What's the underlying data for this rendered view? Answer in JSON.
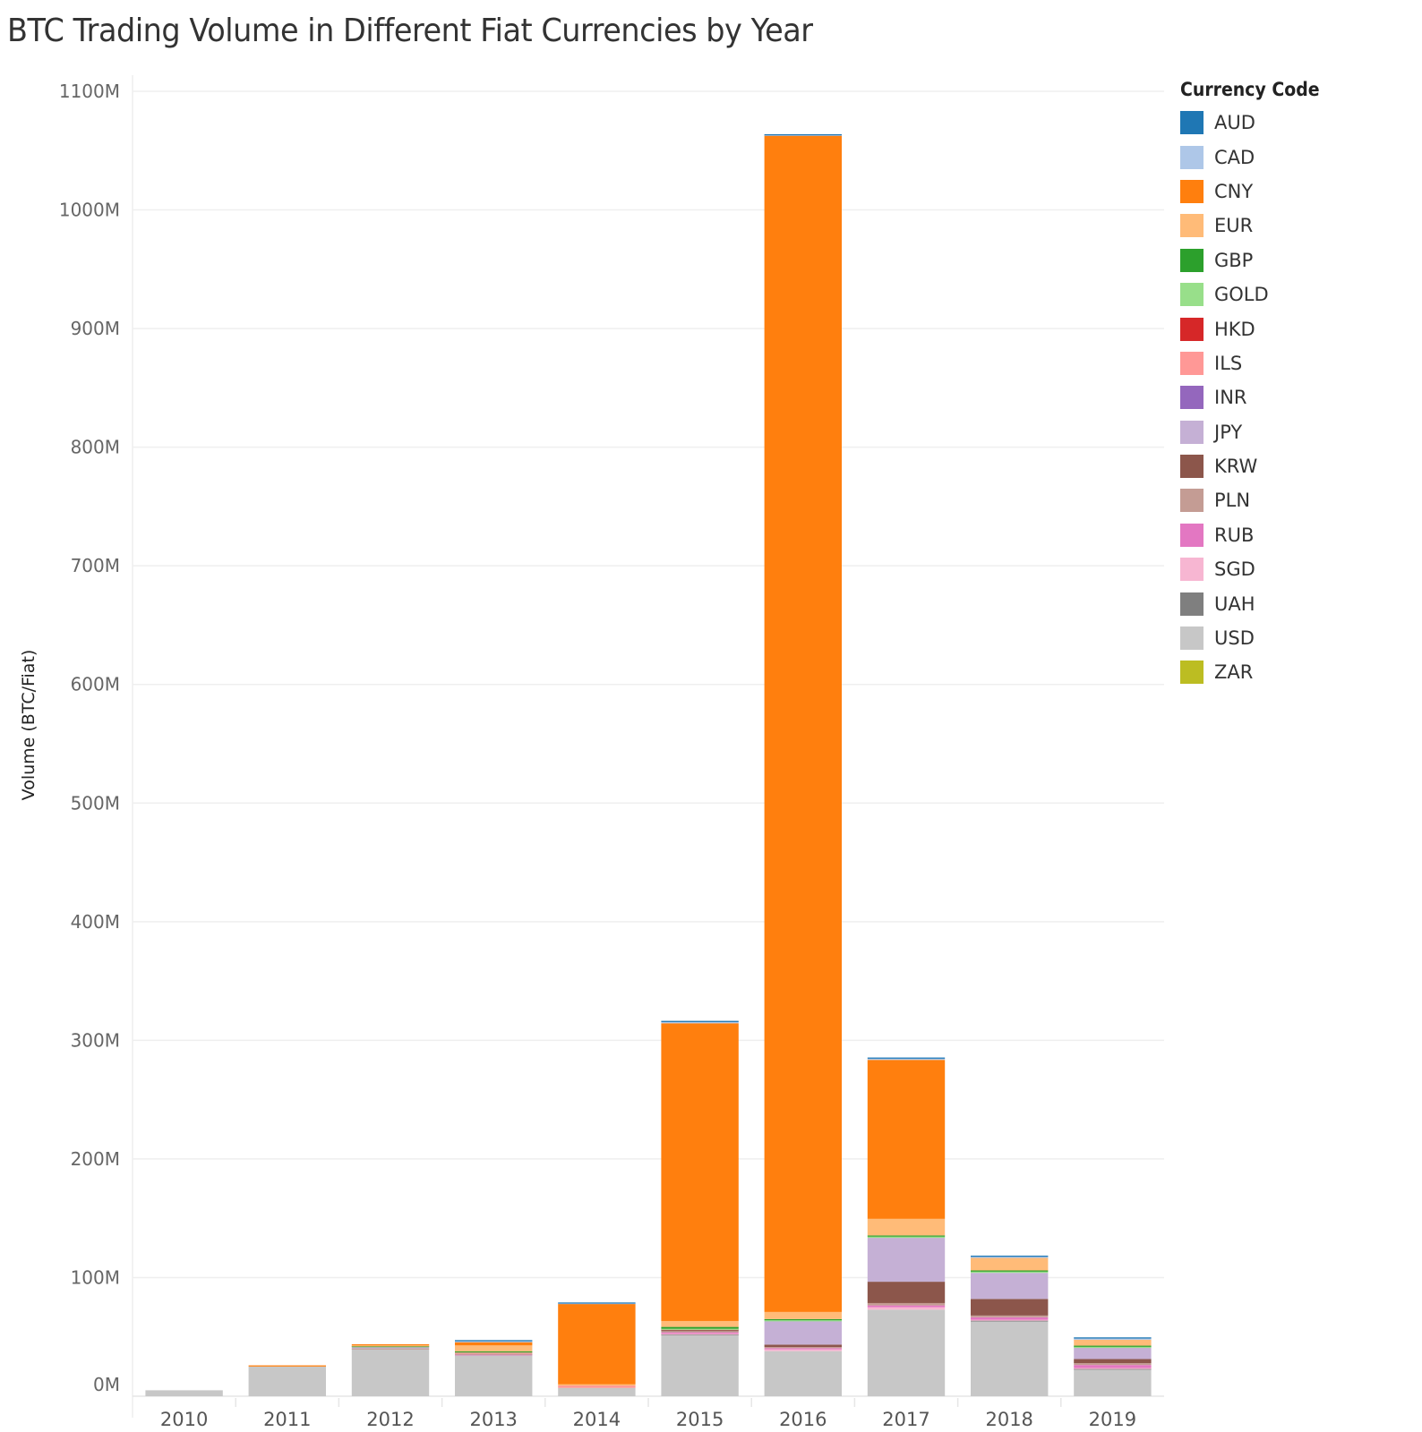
{
  "chart_data": {
    "type": "bar",
    "stacked": true,
    "title": "BTC Trading Volume in Different Fiat Currencies by Year",
    "xlabel": "",
    "ylabel": "Volume (BTC/Fiat)",
    "ylim": [
      0,
      1100
    ],
    "y_unit_suffix": "M",
    "yticks": [
      0,
      100,
      200,
      300,
      400,
      500,
      600,
      700,
      800,
      900,
      1000,
      1100
    ],
    "ytick_labels": [
      "0M",
      "100M",
      "200M",
      "300M",
      "400M",
      "500M",
      "600M",
      "700M",
      "800M",
      "900M",
      "1000M",
      "1100M"
    ],
    "grid": true,
    "legend_title": "Currency Code",
    "legend_position": "right",
    "categories": [
      "2010",
      "2011",
      "2012",
      "2013",
      "2014",
      "2015",
      "2016",
      "2017",
      "2018",
      "2019"
    ],
    "series": [
      {
        "name": "USD",
        "color": "#c7c7c7",
        "values": [
          5,
          25,
          40,
          35,
          7,
          52,
          38,
          73,
          63,
          23
        ]
      },
      {
        "name": "UAH",
        "color": "#7f7f7f",
        "values": [
          0,
          0,
          0,
          0,
          0,
          0.3,
          0,
          0,
          1,
          0.3
        ]
      },
      {
        "name": "SGD",
        "color": "#f7b6d2",
        "values": [
          0,
          0,
          0,
          0,
          0,
          0.5,
          2,
          2,
          0.5,
          0.5
        ]
      },
      {
        "name": "RUB",
        "color": "#e377c2",
        "values": [
          0,
          0,
          0,
          0.3,
          0,
          1,
          0.5,
          1.5,
          2,
          2.5
        ]
      },
      {
        "name": "PLN",
        "color": "#c49c94",
        "values": [
          0,
          0,
          0.3,
          0.5,
          0,
          1,
          1,
          2,
          1.5,
          1.5
        ]
      },
      {
        "name": "KRW",
        "color": "#8c564b",
        "values": [
          0,
          0,
          0,
          0,
          0,
          1.5,
          2,
          18,
          14,
          3.5
        ]
      },
      {
        "name": "JPY",
        "color": "#c5b0d5",
        "values": [
          0,
          0,
          1,
          0,
          0,
          0,
          20,
          37,
          22,
          10
        ]
      },
      {
        "name": "INR",
        "color": "#9467bd",
        "values": [
          0,
          0,
          0,
          0,
          0,
          0,
          0,
          0,
          0,
          0
        ]
      },
      {
        "name": "ILS",
        "color": "#ff9896",
        "values": [
          0,
          0,
          0,
          1,
          2,
          0.3,
          0,
          0,
          0,
          0
        ]
      },
      {
        "name": "HKD",
        "color": "#d62728",
        "values": [
          0,
          0,
          0,
          0,
          0,
          0,
          0,
          0,
          0,
          0
        ]
      },
      {
        "name": "GOLD",
        "color": "#98df8a",
        "values": [
          0,
          0,
          0,
          0,
          0,
          0.3,
          0.5,
          1,
          1,
          0.3
        ]
      },
      {
        "name": "GBP",
        "color": "#2ca02c",
        "values": [
          0,
          0,
          1,
          1,
          0,
          1.5,
          1,
          1,
          1,
          1
        ]
      },
      {
        "name": "EUR",
        "color": "#ffbb78",
        "values": [
          0,
          0,
          0.5,
          5,
          1,
          5,
          6,
          14,
          11,
          5
        ]
      },
      {
        "name": "CNY",
        "color": "#ff7f0e",
        "values": [
          0,
          1,
          1,
          3,
          68,
          251,
          992,
          134,
          0,
          0
        ]
      },
      {
        "name": "CAD",
        "color": "#aec7e8",
        "values": [
          0,
          0,
          0,
          0.5,
          0.5,
          1,
          0.3,
          1,
          0.5,
          1
        ]
      },
      {
        "name": "AUD",
        "color": "#1f77b4",
        "values": [
          0,
          0,
          0,
          1,
          0.5,
          1,
          0.5,
          1,
          1,
          1
        ]
      },
      {
        "name": "ZAR",
        "color": "#bcbd22",
        "values": [
          0,
          0,
          0,
          0,
          0,
          0,
          0,
          0,
          0,
          0
        ]
      }
    ],
    "legend_order": [
      "AUD",
      "CAD",
      "CNY",
      "EUR",
      "GBP",
      "GOLD",
      "HKD",
      "ILS",
      "INR",
      "JPY",
      "KRW",
      "PLN",
      "RUB",
      "SGD",
      "UAH",
      "USD",
      "ZAR"
    ]
  }
}
